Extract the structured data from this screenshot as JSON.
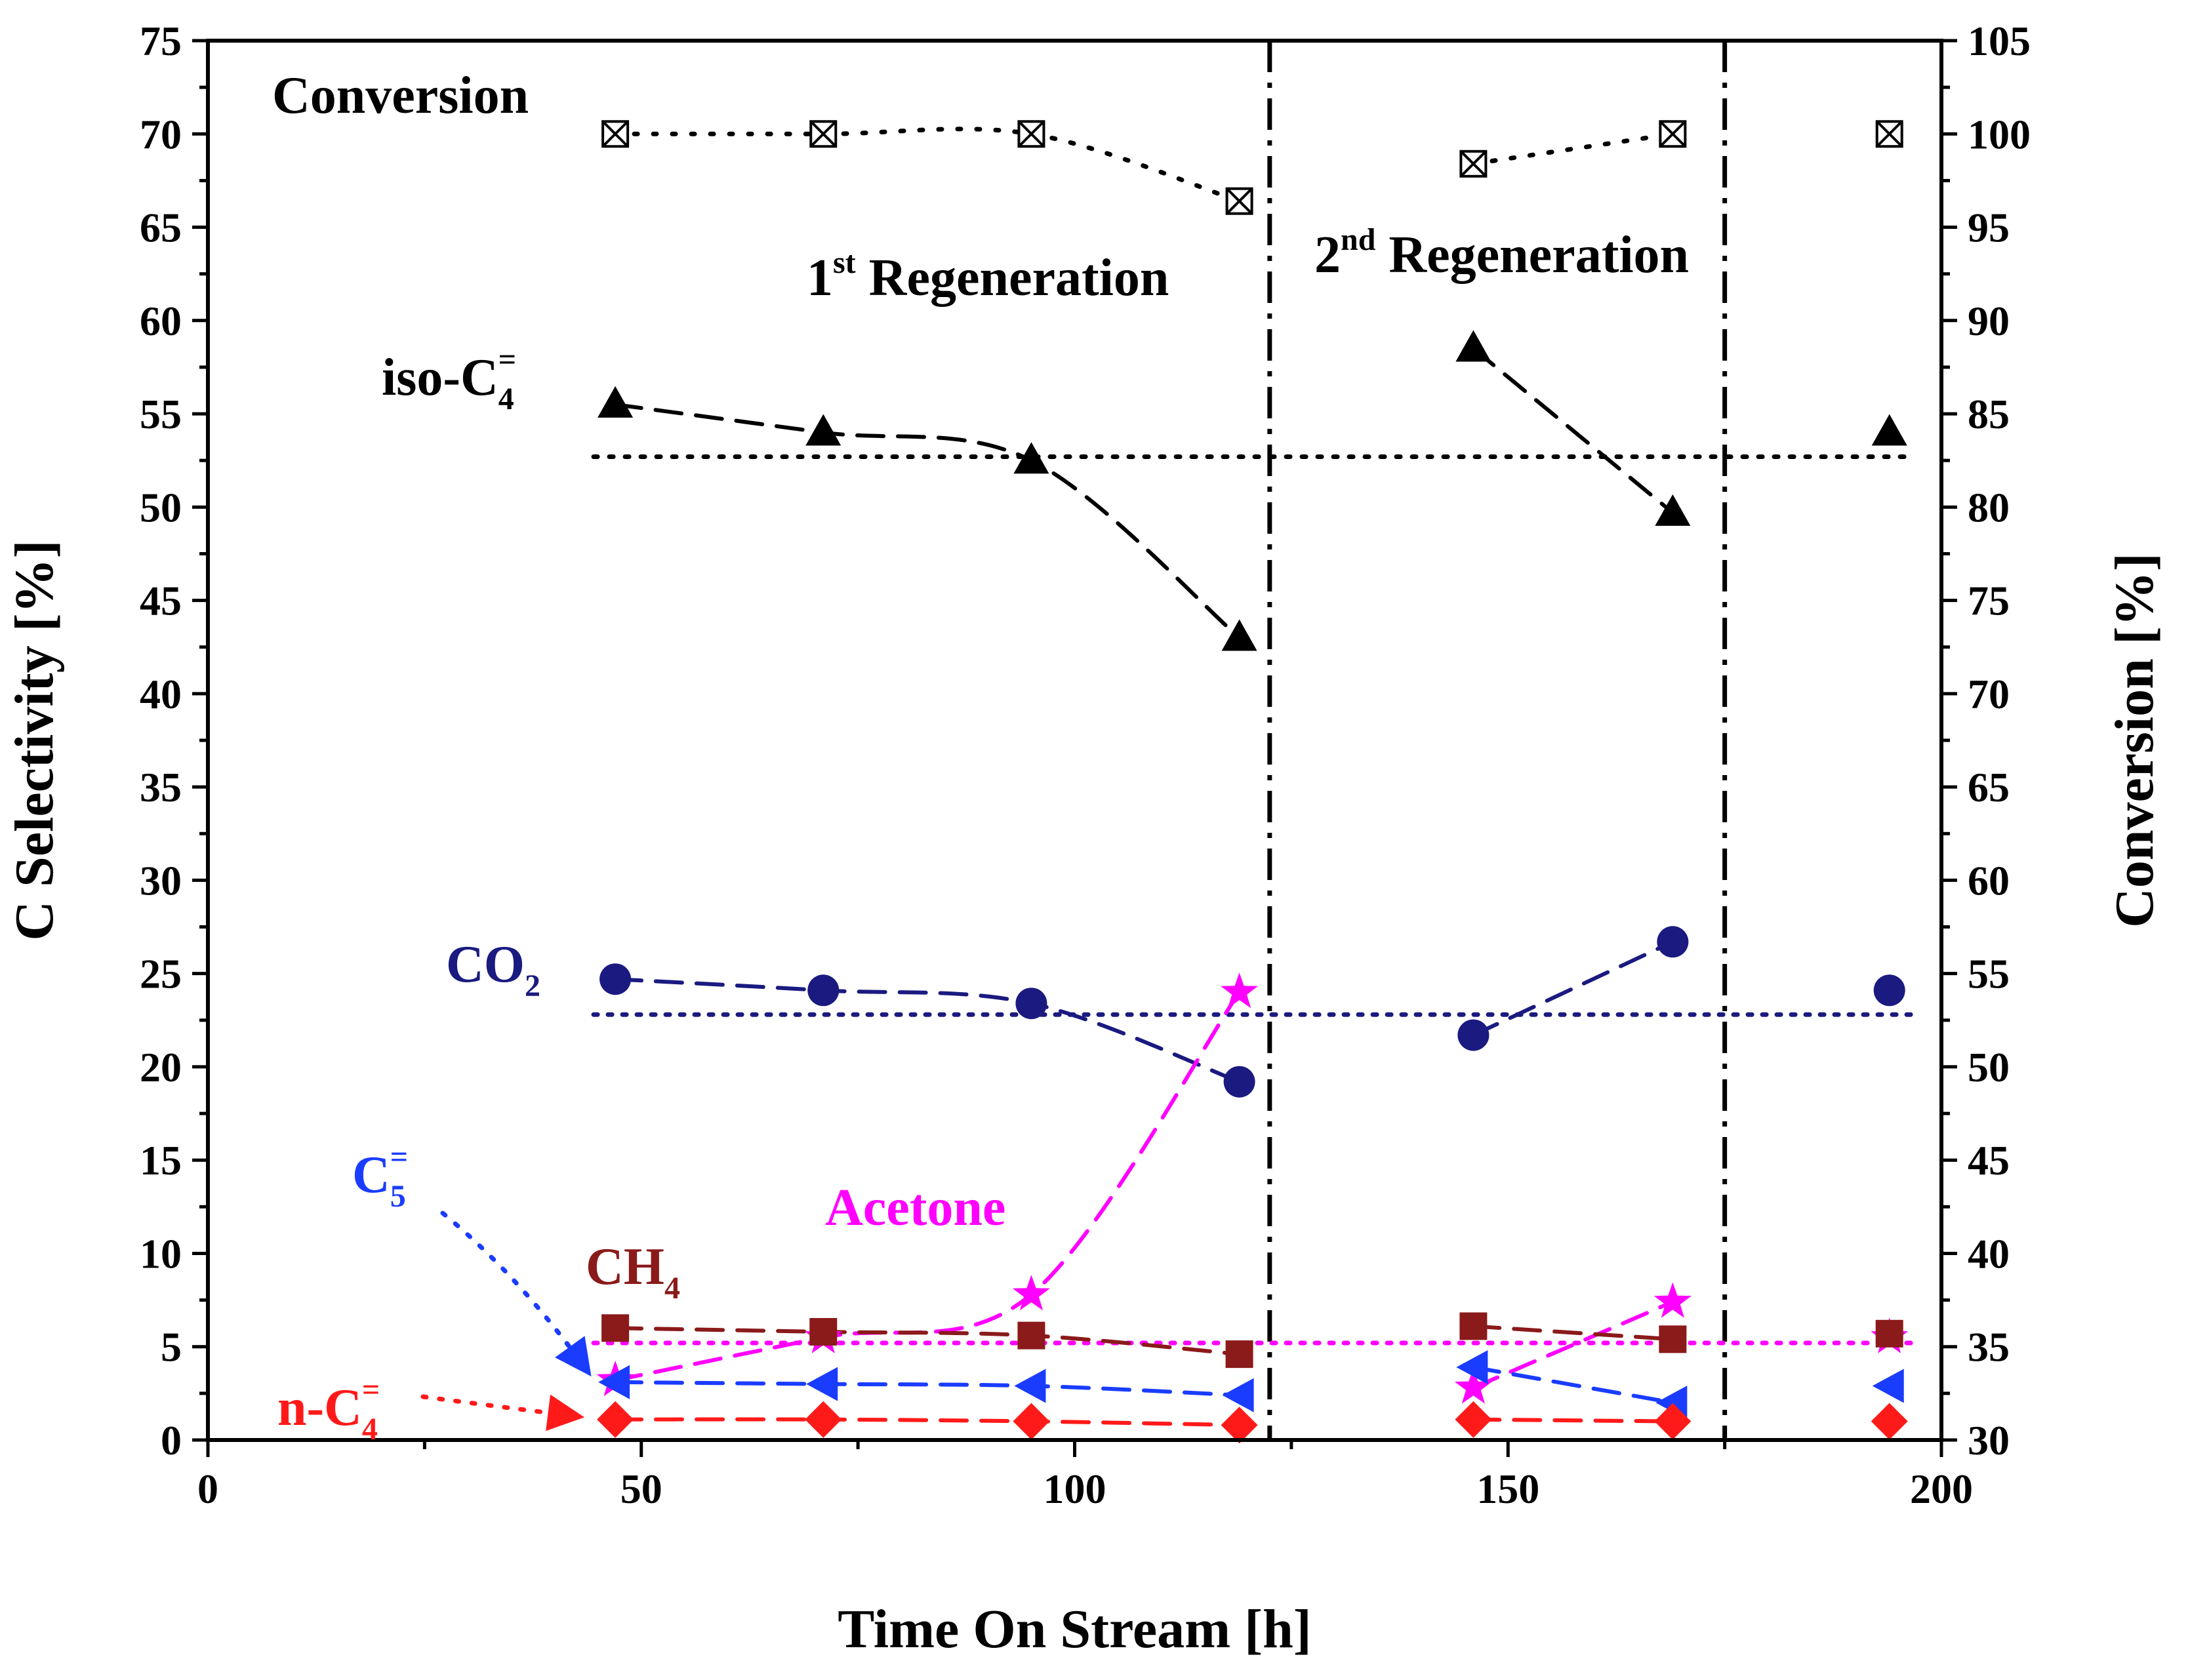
{
  "chart_data": {
    "type": "line",
    "xlabel": "Time On Stream [h]",
    "ylabel": "C Selectivity [%]",
    "y2label": "Conversion [%]",
    "xlim": [
      0,
      200
    ],
    "ylim": [
      0,
      75
    ],
    "y2lim": [
      30,
      105
    ],
    "x_ticks": [
      "0",
      "50",
      "100",
      "150",
      "200"
    ],
    "y_ticks": [
      "0",
      "5",
      "10",
      "15",
      "20",
      "25",
      "30",
      "35",
      "40",
      "45",
      "50",
      "55",
      "60",
      "65",
      "70",
      "75"
    ],
    "y2_ticks": [
      "30",
      "35",
      "40",
      "45",
      "50",
      "55",
      "60",
      "65",
      "70",
      "75",
      "80",
      "85",
      "90",
      "95",
      "100",
      "105"
    ],
    "regeneration_lines": [
      {
        "x": 122.5,
        "label": "1st Regeneration",
        "base": "1",
        "sup": "st",
        "rest": " Regeneration"
      },
      {
        "x": 175,
        "label": "2nd Regeneration",
        "base": "2",
        "sup": "nd",
        "rest": " Regeneration"
      }
    ],
    "series": [
      {
        "key": "conversion",
        "name": "Conversion",
        "label_base": "Conversion",
        "label_sub": "",
        "label_sup": "",
        "axis": "right",
        "marker": "square-x",
        "color": "#000000",
        "dash": "dotted",
        "x": [
          47,
          71,
          95,
          119,
          146,
          169,
          194
        ],
        "y": [
          100,
          100,
          100,
          96.4,
          98.4,
          100,
          100
        ],
        "segments": [
          [
            0,
            3
          ],
          [
            4,
            5
          ]
        ],
        "average": null
      },
      {
        "key": "iso_c4",
        "name": "iso-C4=",
        "label_base": "iso-C",
        "label_sub": "4",
        "label_sup": "=",
        "axis": "left",
        "marker": "triangle-up",
        "color": "#000000",
        "dash": "dashed",
        "x": [
          47,
          71,
          95,
          119,
          146,
          169,
          194
        ],
        "y": [
          55.5,
          54,
          52.5,
          43,
          58.5,
          49.7,
          54
        ],
        "segments": [
          [
            0,
            3
          ],
          [
            4,
            5
          ]
        ],
        "average": 52.7
      },
      {
        "key": "co2",
        "name": "CO2",
        "label_base": "CO",
        "label_sub": "2",
        "label_sup": "",
        "axis": "left",
        "marker": "circle",
        "color": "#1a1a80",
        "dash": "dashed",
        "x": [
          47,
          71,
          95,
          119,
          146,
          169,
          194
        ],
        "y": [
          24.7,
          24.1,
          23.4,
          19.2,
          21.7,
          26.7,
          24.1
        ],
        "segments": [
          [
            0,
            3
          ],
          [
            4,
            5
          ]
        ],
        "average": 22.8
      },
      {
        "key": "acetone",
        "name": "Acetone",
        "label_base": "Acetone",
        "label_sub": "",
        "label_sup": "",
        "axis": "left",
        "marker": "star",
        "color": "#ff00ff",
        "dash": "dashed",
        "x": [
          47,
          71,
          95,
          119,
          146,
          169,
          194
        ],
        "y": [
          3.2,
          5.5,
          7.8,
          24,
          2.8,
          7.4,
          5.5
        ],
        "segments": [
          [
            0,
            3
          ],
          [
            4,
            5
          ]
        ],
        "average": 5.2
      },
      {
        "key": "ch4",
        "name": "CH4",
        "label_base": "CH",
        "label_sub": "4",
        "label_sup": "",
        "axis": "left",
        "marker": "square",
        "color": "#8b1a1a",
        "dash": "dashed",
        "x": [
          47,
          71,
          95,
          119,
          146,
          169,
          194
        ],
        "y": [
          6,
          5.8,
          5.6,
          4.6,
          6.1,
          5.4,
          5.7
        ],
        "segments": [
          [
            0,
            3
          ],
          [
            4,
            5
          ]
        ],
        "average": null
      },
      {
        "key": "c5",
        "name": "C5=",
        "label_base": "C",
        "label_sub": "5",
        "label_sup": "=",
        "axis": "left",
        "marker": "triangle-left",
        "color": "#1a3cff",
        "dash": "dashed",
        "x": [
          47,
          71,
          95,
          119,
          146,
          169,
          194
        ],
        "y": [
          3.1,
          3,
          2.9,
          2.4,
          3.9,
          2,
          2.9
        ],
        "segments": [
          [
            0,
            3
          ],
          [
            4,
            5
          ]
        ],
        "average": null
      },
      {
        "key": "n_c4",
        "name": "n-C4=",
        "label_base": "n-C",
        "label_sub": "4",
        "label_sup": "=",
        "axis": "left",
        "marker": "diamond",
        "color": "#ff1a1a",
        "dash": "dashed",
        "x": [
          47,
          71,
          95,
          119,
          146,
          169,
          194
        ],
        "y": [
          1.1,
          1.1,
          1,
          0.8,
          1.1,
          1,
          1
        ],
        "segments": [
          [
            0,
            3
          ],
          [
            4,
            5
          ]
        ],
        "average": null
      }
    ]
  }
}
